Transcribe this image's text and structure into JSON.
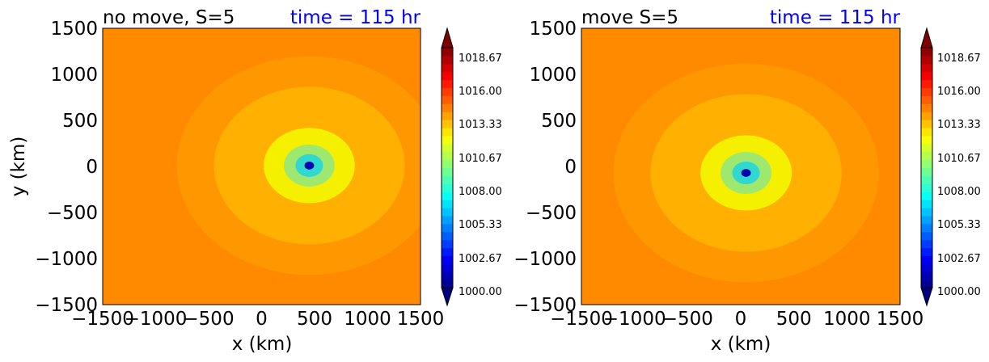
{
  "colors": {
    "time_text": "#0000ff",
    "background_field": "#ff8a00",
    "level_ring": "#ff9900",
    "inner_ring": "#ffb000",
    "yellow_core": "#f4f000",
    "green_core": "#9fe870",
    "cyan_core": "#30d8d0",
    "eye_blue": "#0000b0",
    "frame": "#000000"
  },
  "chart_data": [
    {
      "type": "filled-contour",
      "title_left": "no move, S=5",
      "title_right": "time = 115 hr",
      "xlabel": "x (km)",
      "ylabel": "y (km)",
      "xlim": [
        -1500,
        1500
      ],
      "ylim": [
        -1500,
        1500
      ],
      "xticks": [
        "−1500",
        "−1000",
        "−500",
        "0",
        "500",
        "1000",
        "1500"
      ],
      "yticks": [
        "−1500",
        "−1000",
        "−500",
        "0",
        "500",
        "1000",
        "1500"
      ],
      "center_km": [
        450,
        10
      ],
      "levels_range": [
        1000,
        1020
      ],
      "colorbar_ticks": [
        "1000.00",
        "1002.67",
        "1005.33",
        "1008.00",
        "1010.67",
        "1013.33",
        "1016.00",
        "1018.67"
      ],
      "colorbar_extend": "both"
    },
    {
      "type": "filled-contour",
      "title_left": "move S=5",
      "title_right": "time = 115 hr",
      "xlabel": "x (km)",
      "ylabel": "",
      "xlim": [
        -1500,
        1500
      ],
      "ylim": [
        -1500,
        1500
      ],
      "xticks": [
        "−1500",
        "−1000",
        "−500",
        "0",
        "500",
        "1000",
        "1500"
      ],
      "yticks": [
        "−1500",
        "−1000",
        "−500",
        "0",
        "500",
        "1000",
        "1500"
      ],
      "center_km": [
        50,
        -70
      ],
      "levels_range": [
        1000,
        1020
      ],
      "colorbar_ticks": [
        "1000.00",
        "1002.67",
        "1005.33",
        "1008.00",
        "1010.67",
        "1013.33",
        "1016.00",
        "1018.67"
      ],
      "colorbar_extend": "both"
    }
  ]
}
